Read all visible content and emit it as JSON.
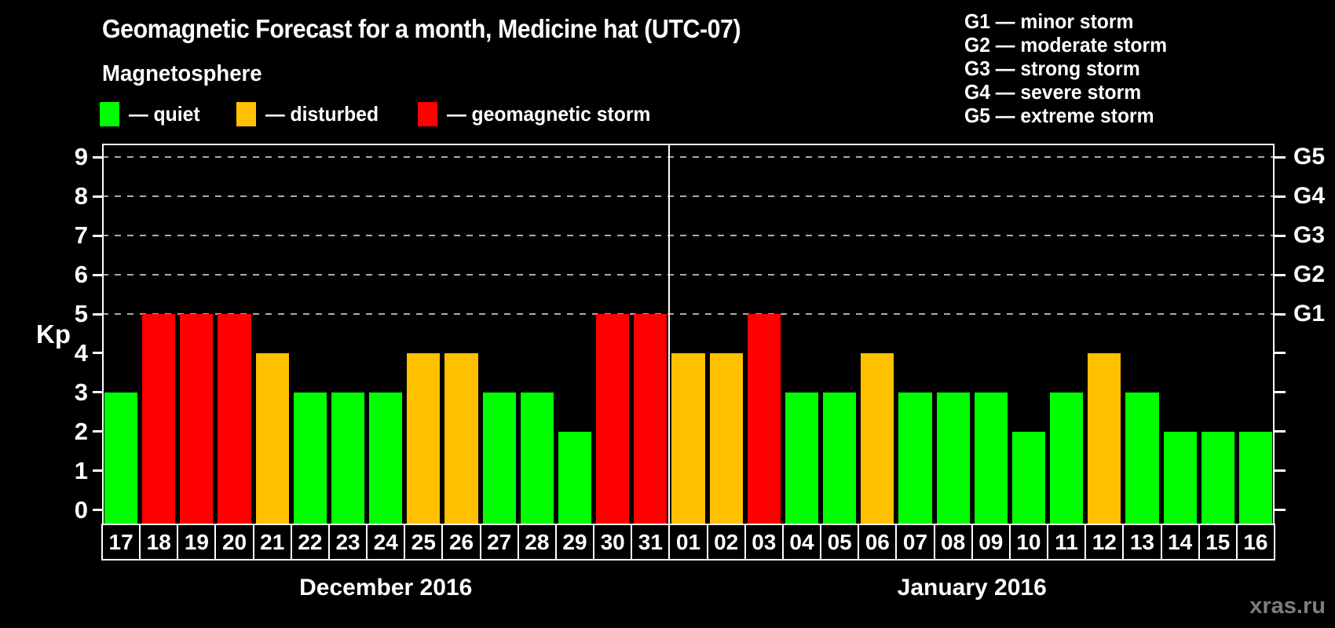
{
  "header": {
    "title": "Geomagnetic Forecast for a month, Medicine hat (UTC-07)",
    "subtitle": "Magnetosphere"
  },
  "legend": {
    "items": [
      {
        "state": "quiet",
        "label": "— quiet",
        "color": "#00ff00"
      },
      {
        "state": "disturbed",
        "label": "— disturbed",
        "color": "#ffc000"
      },
      {
        "state": "storm",
        "label": "— geomagnetic storm",
        "color": "#ff0000"
      }
    ]
  },
  "g_legend": {
    "items": [
      {
        "code": "G1",
        "label": "G1 — minor storm"
      },
      {
        "code": "G2",
        "label": "G2 — moderate storm"
      },
      {
        "code": "G3",
        "label": "G3 — strong storm"
      },
      {
        "code": "G4",
        "label": "G4 — severe storm"
      },
      {
        "code": "G5",
        "label": "G5 — extreme storm"
      }
    ]
  },
  "watermark": "xras.ru",
  "chart_data": {
    "type": "bar",
    "title": "Geomagnetic Forecast for a month, Medicine hat (UTC-07)",
    "ylabel": "Kp",
    "ylim": [
      0,
      9
    ],
    "yticks": [
      0,
      1,
      2,
      3,
      4,
      5,
      6,
      7,
      8,
      9
    ],
    "gridlines_at": [
      5,
      6,
      7,
      8,
      9
    ],
    "grid": "dashed-horizontal",
    "legend_position": "top",
    "right_axis": [
      {
        "kp": 5,
        "label": "G1"
      },
      {
        "kp": 6,
        "label": "G2"
      },
      {
        "kp": 7,
        "label": "G3"
      },
      {
        "kp": 8,
        "label": "G4"
      },
      {
        "kp": 9,
        "label": "G5"
      }
    ],
    "state_colors": {
      "quiet": "#00ff00",
      "disturbed": "#ffc000",
      "storm": "#ff0000"
    },
    "groups": [
      {
        "month_label": "December 2016",
        "days": [
          "17",
          "18",
          "19",
          "20",
          "21",
          "22",
          "23",
          "24",
          "25",
          "26",
          "27",
          "28",
          "29",
          "30",
          "31"
        ],
        "values": [
          3,
          5,
          5,
          5,
          4,
          3,
          3,
          3,
          4,
          4,
          3,
          3,
          2,
          5,
          5
        ],
        "states": [
          "quiet",
          "storm",
          "storm",
          "storm",
          "disturbed",
          "quiet",
          "quiet",
          "quiet",
          "disturbed",
          "disturbed",
          "quiet",
          "quiet",
          "quiet",
          "storm",
          "storm"
        ]
      },
      {
        "month_label": "January 2016",
        "days": [
          "01",
          "02",
          "03",
          "04",
          "05",
          "06",
          "07",
          "08",
          "09",
          "10",
          "11",
          "12",
          "13",
          "14",
          "15",
          "16"
        ],
        "values": [
          4,
          4,
          5,
          3,
          3,
          4,
          3,
          3,
          3,
          2,
          3,
          4,
          3,
          2,
          2,
          2
        ],
        "states": [
          "disturbed",
          "disturbed",
          "storm",
          "quiet",
          "quiet",
          "disturbed",
          "quiet",
          "quiet",
          "quiet",
          "quiet",
          "quiet",
          "disturbed",
          "quiet",
          "quiet",
          "quiet",
          "quiet"
        ]
      }
    ]
  }
}
